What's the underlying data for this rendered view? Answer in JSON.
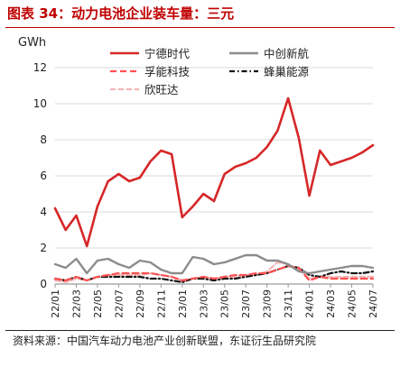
{
  "header": {
    "title": "图表 34：动力电池企业装车量：三元"
  },
  "footer": {
    "source": "资料来源：中国汽车动力电池产业创新联盟，东证衍生品研究院"
  },
  "chart_data": {
    "type": "line",
    "ylabel": "GWh",
    "ylim": [
      0,
      12
    ],
    "yticks": [
      0,
      2,
      4,
      6,
      8,
      10,
      12
    ],
    "x": [
      "22/01",
      "22/02",
      "22/03",
      "22/04",
      "22/05",
      "22/06",
      "22/07",
      "22/08",
      "22/09",
      "22/10",
      "22/11",
      "22/12",
      "23/01",
      "23/02",
      "23/03",
      "23/04",
      "23/05",
      "23/06",
      "23/07",
      "23/08",
      "23/09",
      "23/10",
      "23/11",
      "23/12",
      "24/01",
      "24/02",
      "24/03",
      "24/04",
      "24/05",
      "24/06",
      "24/07"
    ],
    "xtick_labels": [
      "22/01",
      "22/03",
      "22/05",
      "22/07",
      "22/09",
      "22/11",
      "23/01",
      "23/03",
      "23/05",
      "23/07",
      "23/09",
      "23/11",
      "24/01",
      "24/03",
      "24/05",
      "24/07"
    ],
    "legend_position": "top",
    "series": [
      {
        "name": "宁德时代",
        "color": "#d62728",
        "dash": "solid",
        "width": 2.6,
        "values": [
          4.2,
          3.0,
          3.8,
          2.1,
          4.3,
          5.7,
          6.1,
          5.7,
          5.9,
          6.8,
          7.4,
          7.2,
          3.7,
          4.3,
          5.0,
          4.6,
          6.1,
          6.5,
          6.7,
          7.0,
          7.6,
          8.5,
          10.3,
          8.1,
          4.9,
          7.4,
          6.6,
          6.8,
          7.0,
          7.3,
          7.7
        ]
      },
      {
        "name": "中创新航",
        "color": "#8c8c8c",
        "dash": "solid",
        "width": 2.4,
        "values": [
          1.1,
          0.9,
          1.4,
          0.6,
          1.3,
          1.4,
          1.1,
          0.9,
          1.3,
          1.2,
          0.8,
          0.6,
          0.6,
          1.5,
          1.4,
          1.1,
          1.2,
          1.4,
          1.6,
          1.6,
          1.3,
          1.3,
          1.1,
          0.7,
          0.6,
          0.7,
          0.8,
          0.9,
          1.0,
          1.0,
          0.9
        ]
      },
      {
        "name": "孚能科技",
        "color": "#ff5050",
        "dash": "7,4",
        "width": 2.2,
        "values": [
          0.3,
          0.2,
          0.4,
          0.2,
          0.4,
          0.5,
          0.6,
          0.6,
          0.6,
          0.6,
          0.5,
          0.4,
          0.2,
          0.3,
          0.4,
          0.3,
          0.4,
          0.5,
          0.5,
          0.6,
          0.6,
          0.8,
          1.0,
          0.9,
          0.2,
          0.4,
          0.3,
          0.3,
          0.3,
          0.3,
          0.3
        ]
      },
      {
        "name": "蜂巢能源",
        "color": "#111111",
        "dash": "6,3,1.5,3",
        "width": 2.2,
        "values": [
          0.3,
          0.2,
          0.4,
          0.2,
          0.4,
          0.4,
          0.4,
          0.4,
          0.4,
          0.3,
          0.3,
          0.2,
          0.1,
          0.3,
          0.3,
          0.2,
          0.3,
          0.3,
          0.4,
          0.5,
          0.6,
          0.8,
          1.0,
          0.9,
          0.5,
          0.4,
          0.6,
          0.7,
          0.6,
          0.6,
          0.7
        ]
      },
      {
        "name": "欣旺达",
        "color": "#f4b6b6",
        "dash": "6,3",
        "width": 2.2,
        "values": [
          0.2,
          0.1,
          0.3,
          0.2,
          0.4,
          0.5,
          0.5,
          0.5,
          0.5,
          0.6,
          0.5,
          0.4,
          0.2,
          0.3,
          0.4,
          0.3,
          0.4,
          0.4,
          0.5,
          0.5,
          0.7,
          1.2,
          1.1,
          0.8,
          0.3,
          0.4,
          0.4,
          0.4,
          0.4,
          0.4,
          0.4
        ]
      }
    ]
  }
}
